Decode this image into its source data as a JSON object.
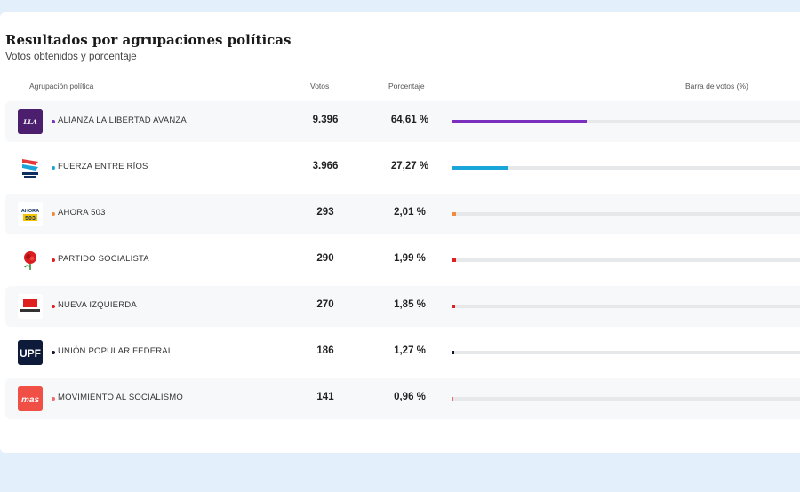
{
  "header": {
    "title": "Resultados por agrupaciones políticas",
    "subtitle": "Votos obtenidos y porcentaje"
  },
  "columns": {
    "party": "Agrupación política",
    "votes": "Votos",
    "percent": "Porcentaje",
    "bar": "Barra de votos (%)"
  },
  "parties": [
    {
      "name": "ALIANZA LA LIBERTAD AVANZA",
      "votes": "9.396",
      "percent_label": "64,61 %",
      "percent": 64.61,
      "color": "#7b2fbe",
      "logo_icon": "libertad-avanza-logo-icon",
      "logo_bg": "#4b1f6e"
    },
    {
      "name": "FUERZA ENTRE RÍOS",
      "votes": "3.966",
      "percent_label": "27,27 %",
      "percent": 27.27,
      "color": "#1aa5d9",
      "logo_icon": "fuerza-entre-rios-logo-icon",
      "logo_bg": "#ffffff"
    },
    {
      "name": "AHORA 503",
      "votes": "293",
      "percent_label": "2,01 %",
      "percent": 2.01,
      "color": "#f08a3c",
      "logo_icon": "ahora-503-logo-icon",
      "logo_bg": "#ffffff"
    },
    {
      "name": "PARTIDO SOCIALISTA",
      "votes": "290",
      "percent_label": "1,99 %",
      "percent": 1.99,
      "color": "#e0201f",
      "logo_icon": "rose-logo-icon",
      "logo_bg": "#ffffff"
    },
    {
      "name": "NUEVA IZQUIERDA",
      "votes": "270",
      "percent_label": "1,85 %",
      "percent": 1.85,
      "color": "#e0201f",
      "logo_icon": "nueva-izquierda-logo-icon",
      "logo_bg": "#ffffff"
    },
    {
      "name": "UNIÓN POPULAR FEDERAL",
      "votes": "186",
      "percent_label": "1,27 %",
      "percent": 1.27,
      "color": "#111133",
      "logo_icon": "upf-logo-icon",
      "logo_bg": "#0d1a3a"
    },
    {
      "name": "MOVIMIENTO AL SOCIALISMO",
      "votes": "141",
      "percent_label": "0,96 %",
      "percent": 0.96,
      "color": "#f06a6a",
      "logo_icon": "mas-logo-icon",
      "logo_bg": "#ef4f45"
    }
  ]
}
